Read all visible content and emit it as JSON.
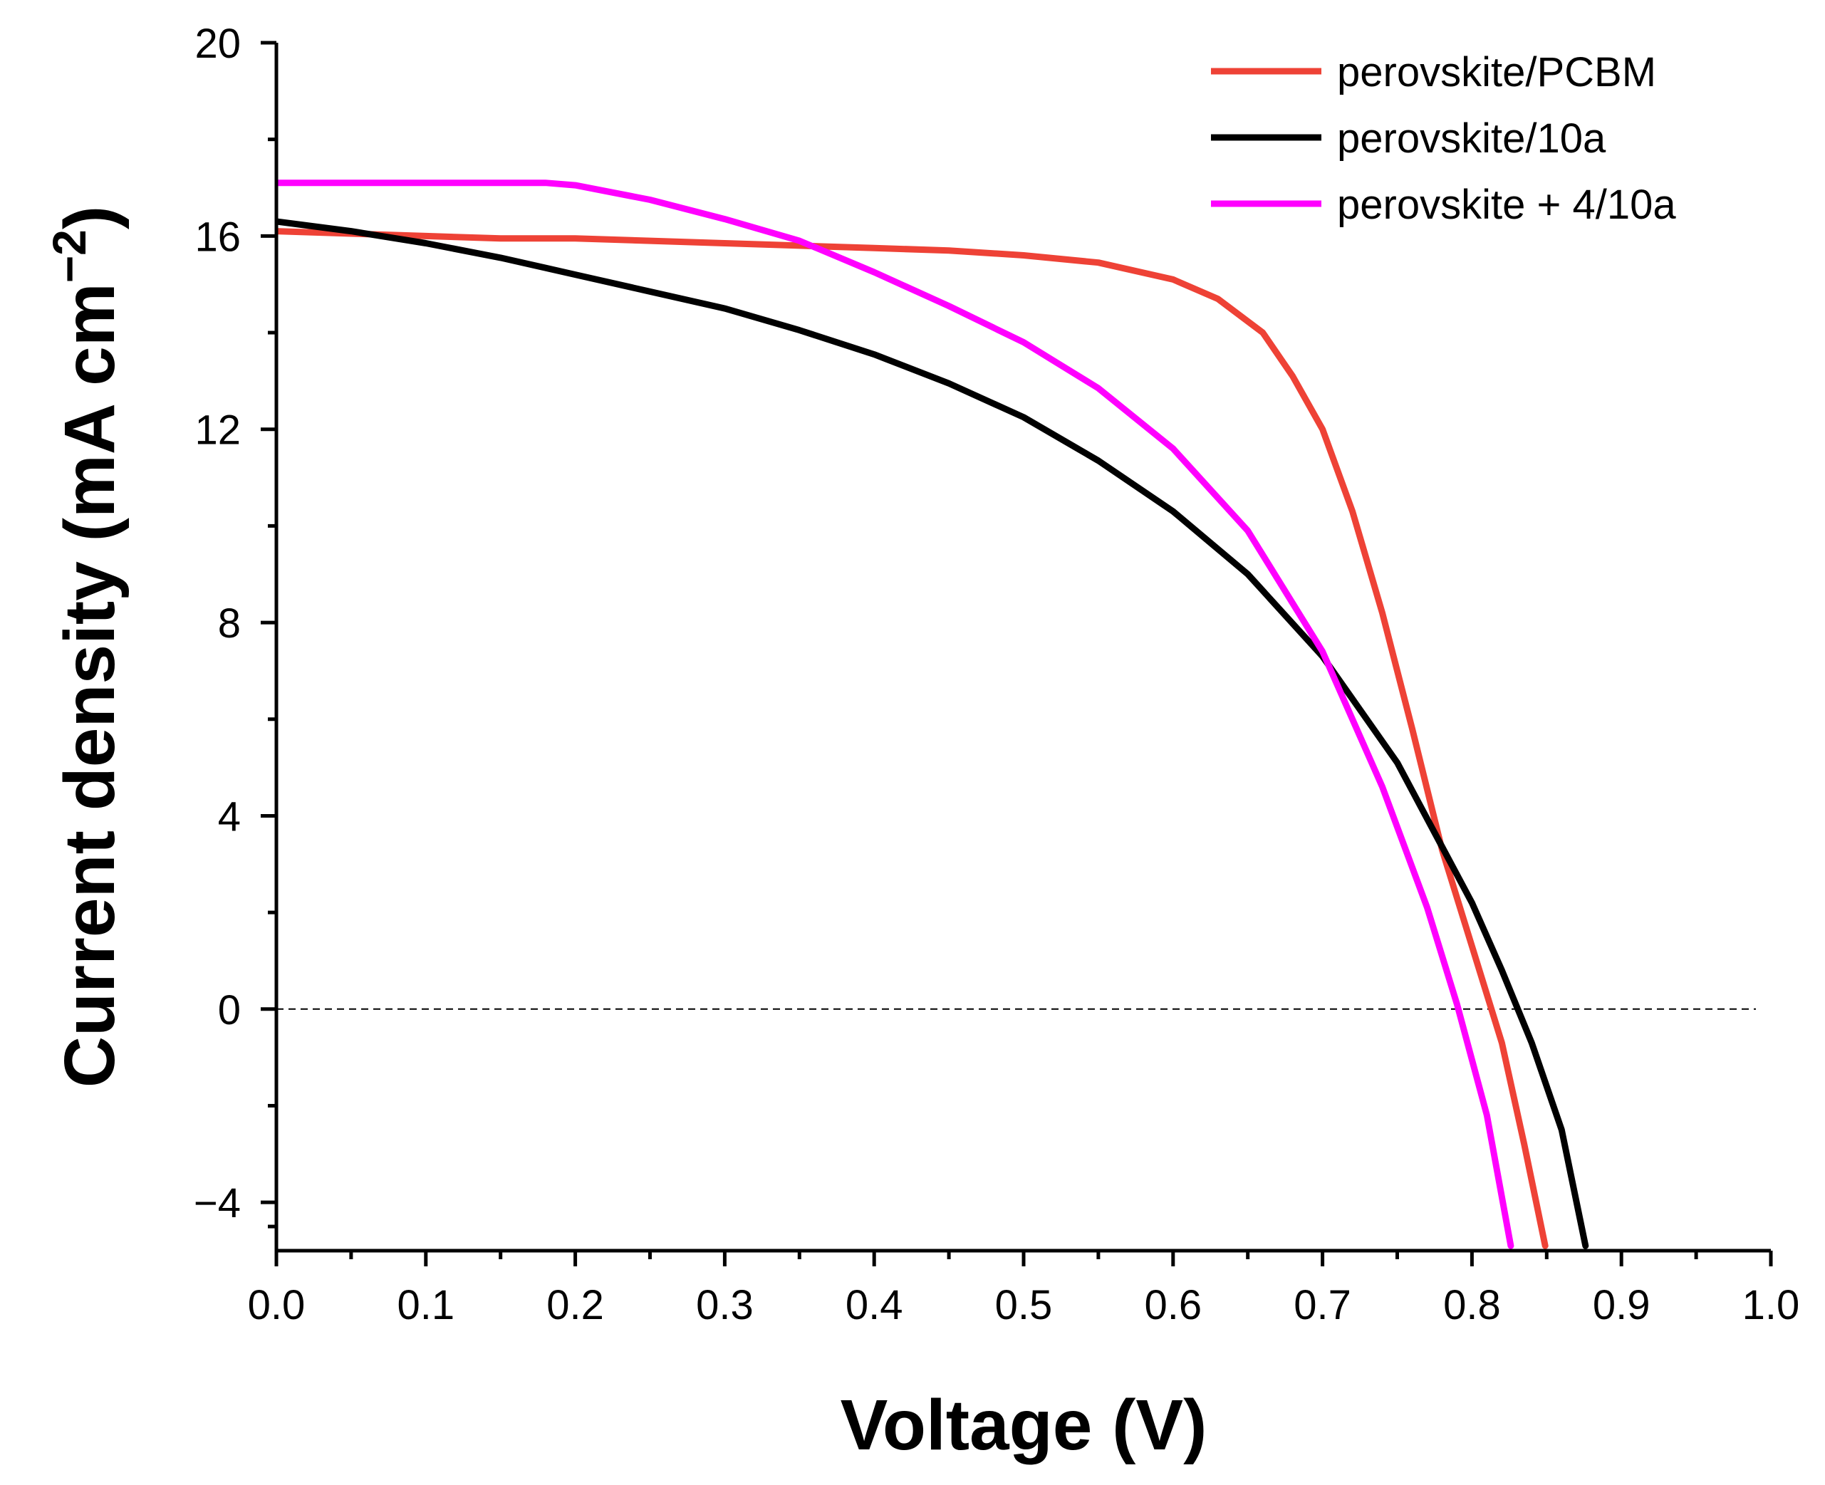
{
  "chart_data": {
    "type": "line",
    "title": "",
    "xlabel": "Voltage (V)",
    "ylabel_main": "Current density (mA cm",
    "ylabel_sup": "−2",
    "ylabel_close": ")",
    "xlim": [
      0.0,
      1.0
    ],
    "ylim": [
      -5,
      20
    ],
    "x_ticks": [
      0.0,
      0.1,
      0.2,
      0.3,
      0.4,
      0.5,
      0.6,
      0.7,
      0.8,
      0.9,
      1.0
    ],
    "x_tick_labels": [
      "0.0",
      "0.1",
      "0.2",
      "0.3",
      "0.4",
      "0.5",
      "0.6",
      "0.7",
      "0.8",
      "0.9",
      "1.0"
    ],
    "y_ticks": [
      -4,
      0,
      4,
      8,
      12,
      16,
      20
    ],
    "y_tick_labels": [
      "−4",
      "0",
      "4",
      "8",
      "12",
      "16",
      "20"
    ],
    "grid": false,
    "legend_position": "top-right",
    "zero_line": {
      "y": 0,
      "x_range": [
        0.0,
        0.99
      ],
      "style": "dashed"
    },
    "series": [
      {
        "name": "perovskite/PCBM",
        "color": "#ee4236",
        "x": [
          0.0,
          0.05,
          0.1,
          0.15,
          0.2,
          0.25,
          0.3,
          0.35,
          0.4,
          0.45,
          0.5,
          0.55,
          0.6,
          0.63,
          0.66,
          0.68,
          0.7,
          0.72,
          0.74,
          0.76,
          0.78,
          0.8,
          0.82,
          0.835,
          0.849
        ],
        "y": [
          16.1,
          16.05,
          16.0,
          15.95,
          15.95,
          15.9,
          15.85,
          15.8,
          15.75,
          15.7,
          15.6,
          15.45,
          15.1,
          14.7,
          14.0,
          13.1,
          12.0,
          10.3,
          8.2,
          5.8,
          3.3,
          1.3,
          -0.7,
          -2.8,
          -4.9
        ]
      },
      {
        "name": "perovskite/10a",
        "color": "#000000",
        "x": [
          0.0,
          0.05,
          0.1,
          0.15,
          0.2,
          0.25,
          0.3,
          0.35,
          0.4,
          0.45,
          0.5,
          0.55,
          0.6,
          0.65,
          0.7,
          0.75,
          0.8,
          0.82,
          0.84,
          0.86,
          0.876
        ],
        "y": [
          16.3,
          16.1,
          15.85,
          15.55,
          15.2,
          14.85,
          14.5,
          14.05,
          13.55,
          12.95,
          12.25,
          11.35,
          10.3,
          9.0,
          7.3,
          5.1,
          2.2,
          0.8,
          -0.7,
          -2.5,
          -4.9
        ]
      },
      {
        "name": "perovskite + 4/10a",
        "color": "#ff00ff",
        "x": [
          0.0,
          0.05,
          0.1,
          0.15,
          0.18,
          0.2,
          0.25,
          0.3,
          0.35,
          0.4,
          0.45,
          0.5,
          0.55,
          0.6,
          0.65,
          0.7,
          0.74,
          0.77,
          0.79,
          0.81,
          0.826
        ],
        "y": [
          17.1,
          17.1,
          17.1,
          17.1,
          17.1,
          17.05,
          16.75,
          16.35,
          15.9,
          15.25,
          14.55,
          13.8,
          12.85,
          11.6,
          9.9,
          7.4,
          4.6,
          2.1,
          0.1,
          -2.2,
          -4.9
        ]
      }
    ]
  }
}
